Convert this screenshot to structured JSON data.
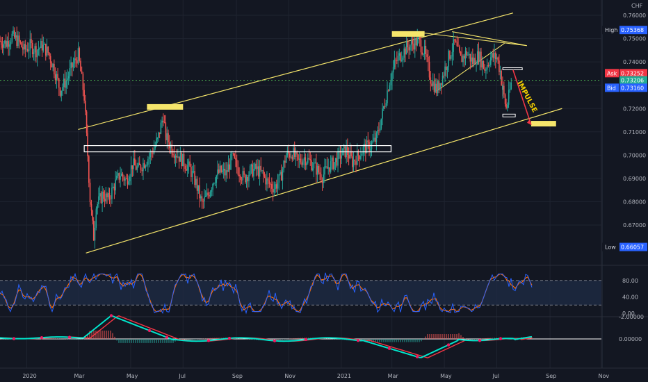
{
  "chart_data": {
    "type": "candlestick",
    "currency": "CHF",
    "price_axis": {
      "ticks": [
        "0.76000",
        "0.75000",
        "0.74000",
        "0.73000",
        "0.72000",
        "0.71000",
        "0.70000",
        "0.69000",
        "0.68000",
        "0.67000"
      ],
      "range": [
        0.6555,
        0.7615
      ]
    },
    "time_axis": {
      "ticks": [
        "2020",
        "Mar",
        "May",
        "Jul",
        "Sep",
        "Nov",
        "2021",
        "Mar",
        "May",
        "Jul",
        "Sep",
        "Nov"
      ],
      "range": [
        "2019-12-01",
        "2021-11-20"
      ]
    },
    "price_series": [
      [
        "2019-12-01",
        0.749
      ],
      [
        "2019-12-08",
        0.748
      ],
      [
        "2019-12-15",
        0.751
      ],
      [
        "2019-12-22",
        0.749
      ],
      [
        "2019-12-29",
        0.745
      ],
      [
        "2020-01-05",
        0.747
      ],
      [
        "2020-01-12",
        0.745
      ],
      [
        "2020-01-19",
        0.747
      ],
      [
        "2020-01-26",
        0.744
      ],
      [
        "2020-02-02",
        0.737
      ],
      [
        "2020-02-09",
        0.728
      ],
      [
        "2020-02-16",
        0.732
      ],
      [
        "2020-02-23",
        0.738
      ],
      [
        "2020-03-01",
        0.743
      ],
      [
        "2020-03-08",
        0.725
      ],
      [
        "2020-03-12",
        0.7
      ],
      [
        "2020-03-15",
        0.68
      ],
      [
        "2020-03-19",
        0.665
      ],
      [
        "2020-03-22",
        0.678
      ],
      [
        "2020-03-29",
        0.683
      ],
      [
        "2020-04-05",
        0.681
      ],
      [
        "2020-04-12",
        0.687
      ],
      [
        "2020-04-19",
        0.692
      ],
      [
        "2020-04-26",
        0.689
      ],
      [
        "2020-05-03",
        0.696
      ],
      [
        "2020-05-10",
        0.694
      ],
      [
        "2020-05-17",
        0.697
      ],
      [
        "2020-05-24",
        0.7
      ],
      [
        "2020-06-01",
        0.706
      ],
      [
        "2020-06-08",
        0.717
      ],
      [
        "2020-06-11",
        0.708
      ],
      [
        "2020-06-18",
        0.703
      ],
      [
        "2020-06-25",
        0.7
      ],
      [
        "2020-07-02",
        0.697
      ],
      [
        "2020-07-09",
        0.694
      ],
      [
        "2020-07-16",
        0.688
      ],
      [
        "2020-07-23",
        0.679
      ],
      [
        "2020-07-30",
        0.683
      ],
      [
        "2020-08-06",
        0.69
      ],
      [
        "2020-08-13",
        0.693
      ],
      [
        "2020-08-20",
        0.692
      ],
      [
        "2020-08-27",
        0.699
      ],
      [
        "2020-09-03",
        0.694
      ],
      [
        "2020-09-10",
        0.69
      ],
      [
        "2020-09-17",
        0.693
      ],
      [
        "2020-09-24",
        0.694
      ],
      [
        "2020-10-01",
        0.692
      ],
      [
        "2020-10-08",
        0.688
      ],
      [
        "2020-10-15",
        0.686
      ],
      [
        "2020-10-22",
        0.69
      ],
      [
        "2020-10-29",
        0.7
      ],
      [
        "2020-11-05",
        0.701
      ],
      [
        "2020-11-12",
        0.697
      ],
      [
        "2020-11-19",
        0.699
      ],
      [
        "2020-11-26",
        0.697
      ],
      [
        "2020-12-03",
        0.694
      ],
      [
        "2020-12-10",
        0.691
      ],
      [
        "2020-12-17",
        0.695
      ],
      [
        "2020-12-24",
        0.697
      ],
      [
        "2020-12-31",
        0.7
      ],
      [
        "2021-01-07",
        0.702
      ],
      [
        "2021-01-14",
        0.697
      ],
      [
        "2021-01-21",
        0.7
      ],
      [
        "2021-01-28",
        0.703
      ],
      [
        "2021-02-04",
        0.704
      ],
      [
        "2021-02-11",
        0.707
      ],
      [
        "2021-02-18",
        0.718
      ],
      [
        "2021-02-25",
        0.73
      ],
      [
        "2021-03-04",
        0.739
      ],
      [
        "2021-03-11",
        0.743
      ],
      [
        "2021-03-18",
        0.746
      ],
      [
        "2021-03-25",
        0.748
      ],
      [
        "2021-04-01",
        0.749
      ],
      [
        "2021-04-08",
        0.744
      ],
      [
        "2021-04-15",
        0.733
      ],
      [
        "2021-04-22",
        0.728
      ],
      [
        "2021-04-29",
        0.734
      ],
      [
        "2021-05-06",
        0.742
      ],
      [
        "2021-05-13",
        0.748
      ],
      [
        "2021-05-20",
        0.741
      ],
      [
        "2021-05-27",
        0.744
      ],
      [
        "2021-06-03",
        0.74
      ],
      [
        "2021-06-10",
        0.743
      ],
      [
        "2021-06-17",
        0.737
      ],
      [
        "2021-06-24",
        0.742
      ],
      [
        "2021-07-01",
        0.742
      ],
      [
        "2021-07-05",
        0.736
      ],
      [
        "2021-07-08",
        0.728
      ],
      [
        "2021-07-12",
        0.72
      ],
      [
        "2021-07-15",
        0.725
      ],
      [
        "2021-07-19",
        0.733
      ]
    ],
    "price_labels": [
      {
        "label": "High",
        "value": "0.75368",
        "color": "#2962ff"
      },
      {
        "label": "Ask",
        "value": "0.73252",
        "color": "#f23645"
      },
      {
        "label": "",
        "value": "0.73206",
        "color": "#22ab94"
      },
      {
        "label": "Bid",
        "value": "0.73160",
        "color": "#2962ff"
      },
      {
        "label": "Low",
        "value": "0.66057",
        "color": "#2962ff"
      }
    ],
    "annotations": {
      "impulse_text": "IMPULSE",
      "channel_upper": [
        [
          "2020-03-01",
          0.711
        ],
        [
          "2021-07-20",
          0.761
        ]
      ],
      "channel_lower": [
        [
          "2020-03-10",
          0.658
        ],
        [
          "2021-09-15",
          0.72
        ]
      ],
      "zones": [
        {
          "from": "2020-05-20",
          "to": "2020-07-01",
          "price": 0.7207,
          "type": "supply"
        },
        {
          "from": "2021-03-01",
          "to": "2021-04-08",
          "price": 0.752,
          "type": "supply"
        },
        {
          "from": "2021-08-10",
          "to": "2021-09-08",
          "price": 0.7135,
          "type": "target"
        }
      ],
      "box": {
        "from": "2020-03-08",
        "to": "2021-02-28",
        "top": 0.7035,
        "bottom": 0.702
      },
      "colors": {
        "lines": "#f5e56b",
        "zones": "#f5e56b",
        "box": "#ffffff",
        "impulse": "#f23645"
      }
    },
    "stochastic": {
      "ticks": [
        "80.00",
        "40.00",
        "0.00"
      ],
      "bands": [
        80,
        20
      ],
      "colors": {
        "k": "#2962ff",
        "d": "#ff6d00"
      }
    },
    "macd": {
      "ticks": [
        "0.00000",
        "-2.00000"
      ],
      "colors": {
        "macd": "#00e5cc",
        "signal": "#f23645",
        "hist_pos": "#26a69a",
        "hist_neg": "#ef5350",
        "cross": "#e91e63"
      }
    }
  }
}
